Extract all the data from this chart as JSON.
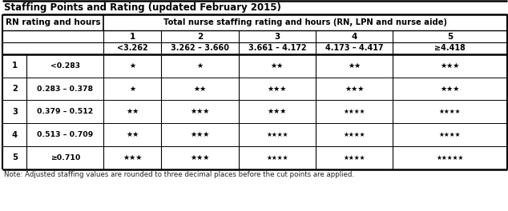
{
  "title": "Staffing Points and Rating (updated February 2015)",
  "note": "Note: Adjusted staffing values are rounded to three decimal places before the cut points are applied.",
  "rn_header": "RN rating and hours",
  "total_header": "Total nurse staffing rating and hours (RN, LPN and nurse aide)",
  "col_nums": [
    "1",
    "2",
    "3",
    "4",
    "5"
  ],
  "col_ranges": [
    "<3.262",
    "3.262 – 3.660",
    "3.661 – 4.172",
    "4.173 – 4.417",
    "≥4.418"
  ],
  "rn_rows": [
    {
      "rn_rating": "1",
      "rn_hours": "<0.283",
      "stars": [
        1,
        1,
        2,
        2,
        3
      ]
    },
    {
      "rn_rating": "2",
      "rn_hours": "0.283 – 0.378",
      "stars": [
        1,
        2,
        3,
        3,
        3
      ]
    },
    {
      "rn_rating": "3",
      "rn_hours": "0.379 – 0.512",
      "stars": [
        2,
        3,
        3,
        4,
        4
      ]
    },
    {
      "rn_rating": "4",
      "rn_hours": "0.513 – 0.709",
      "stars": [
        2,
        3,
        4,
        4,
        4
      ]
    },
    {
      "rn_rating": "5",
      "rn_hours": "≥0.710",
      "stars": [
        3,
        3,
        4,
        4,
        5
      ]
    }
  ],
  "background_color": "#ffffff",
  "font_color": "#000000",
  "title_fontsize": 8.5,
  "header_fontsize": 7.5,
  "body_fontsize": 7.2,
  "note_fontsize": 6.2,
  "star_fontsize_small": 6.5,
  "star_fontsize_large": 5.5
}
